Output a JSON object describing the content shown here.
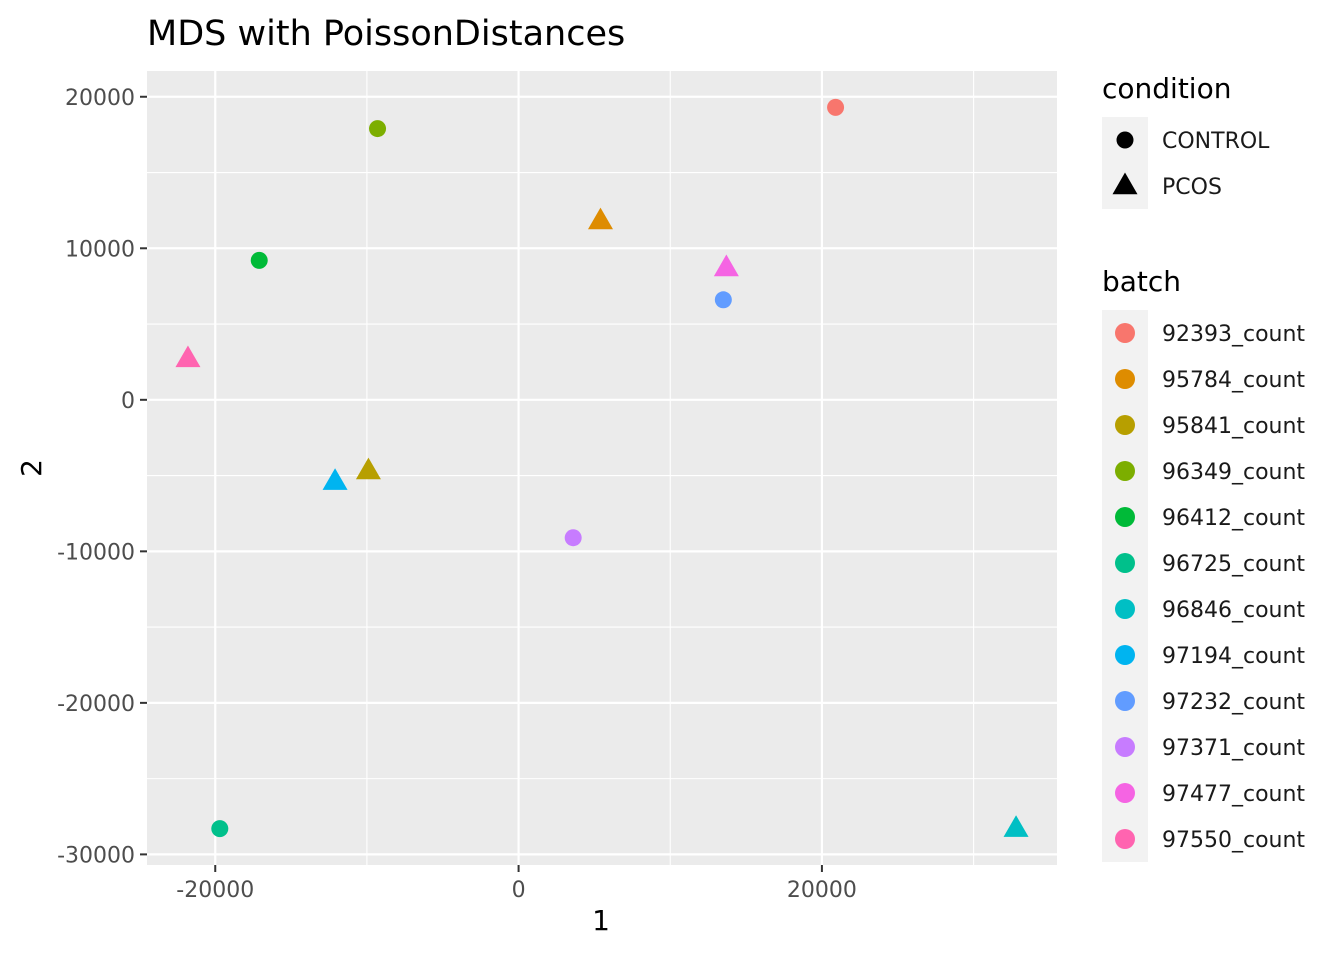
{
  "chart_data": {
    "type": "scatter",
    "title": "MDS with PoissonDistances",
    "xlabel": "1",
    "ylabel": "2",
    "xlim": [
      -24500,
      35500
    ],
    "ylim": [
      -30700,
      21700
    ],
    "x_ticks": [
      -20000,
      0,
      20000
    ],
    "y_ticks": [
      -30000,
      -20000,
      -10000,
      0,
      10000,
      20000
    ],
    "grid": true,
    "legend_position": "right",
    "legends": {
      "condition": {
        "title": "condition",
        "items": [
          {
            "label": "CONTROL",
            "shape": "circle"
          },
          {
            "label": "PCOS",
            "shape": "triangle"
          }
        ]
      },
      "batch": {
        "title": "batch",
        "items": [
          {
            "label": "92393_count",
            "color": "#F8766D"
          },
          {
            "label": "95784_count",
            "color": "#DE8C00"
          },
          {
            "label": "95841_count",
            "color": "#B79F00"
          },
          {
            "label": "96349_count",
            "color": "#7CAE00"
          },
          {
            "label": "96412_count",
            "color": "#00BA38"
          },
          {
            "label": "96725_count",
            "color": "#00C08B"
          },
          {
            "label": "96846_count",
            "color": "#00BFC4"
          },
          {
            "label": "97194_count",
            "color": "#00B4F0"
          },
          {
            "label": "97232_count",
            "color": "#619CFF"
          },
          {
            "label": "97371_count",
            "color": "#C77CFF"
          },
          {
            "label": "97477_count",
            "color": "#F564E3"
          },
          {
            "label": "97550_count",
            "color": "#FF64B0"
          }
        ]
      }
    },
    "points": [
      {
        "batch": "92393_count",
        "condition": "CONTROL",
        "x": 20900,
        "y": 19300
      },
      {
        "batch": "95784_count",
        "condition": "PCOS",
        "x": 5400,
        "y": 11800
      },
      {
        "batch": "95841_count",
        "condition": "PCOS",
        "x": -9900,
        "y": -4700
      },
      {
        "batch": "96349_count",
        "condition": "CONTROL",
        "x": -9300,
        "y": 17900
      },
      {
        "batch": "96412_count",
        "condition": "CONTROL",
        "x": -17100,
        "y": 9200
      },
      {
        "batch": "96725_count",
        "condition": "CONTROL",
        "x": -19700,
        "y": -28300
      },
      {
        "batch": "96846_count",
        "condition": "PCOS",
        "x": 32800,
        "y": -28300
      },
      {
        "batch": "97194_count",
        "condition": "PCOS",
        "x": -12100,
        "y": -5400
      },
      {
        "batch": "97232_count",
        "condition": "CONTROL",
        "x": 13500,
        "y": 6600
      },
      {
        "batch": "97371_count",
        "condition": "CONTROL",
        "x": 3600,
        "y": -9100
      },
      {
        "batch": "97477_count",
        "condition": "PCOS",
        "x": 13700,
        "y": 8700
      },
      {
        "batch": "97550_count",
        "condition": "PCOS",
        "x": -21800,
        "y": 2700
      }
    ]
  }
}
